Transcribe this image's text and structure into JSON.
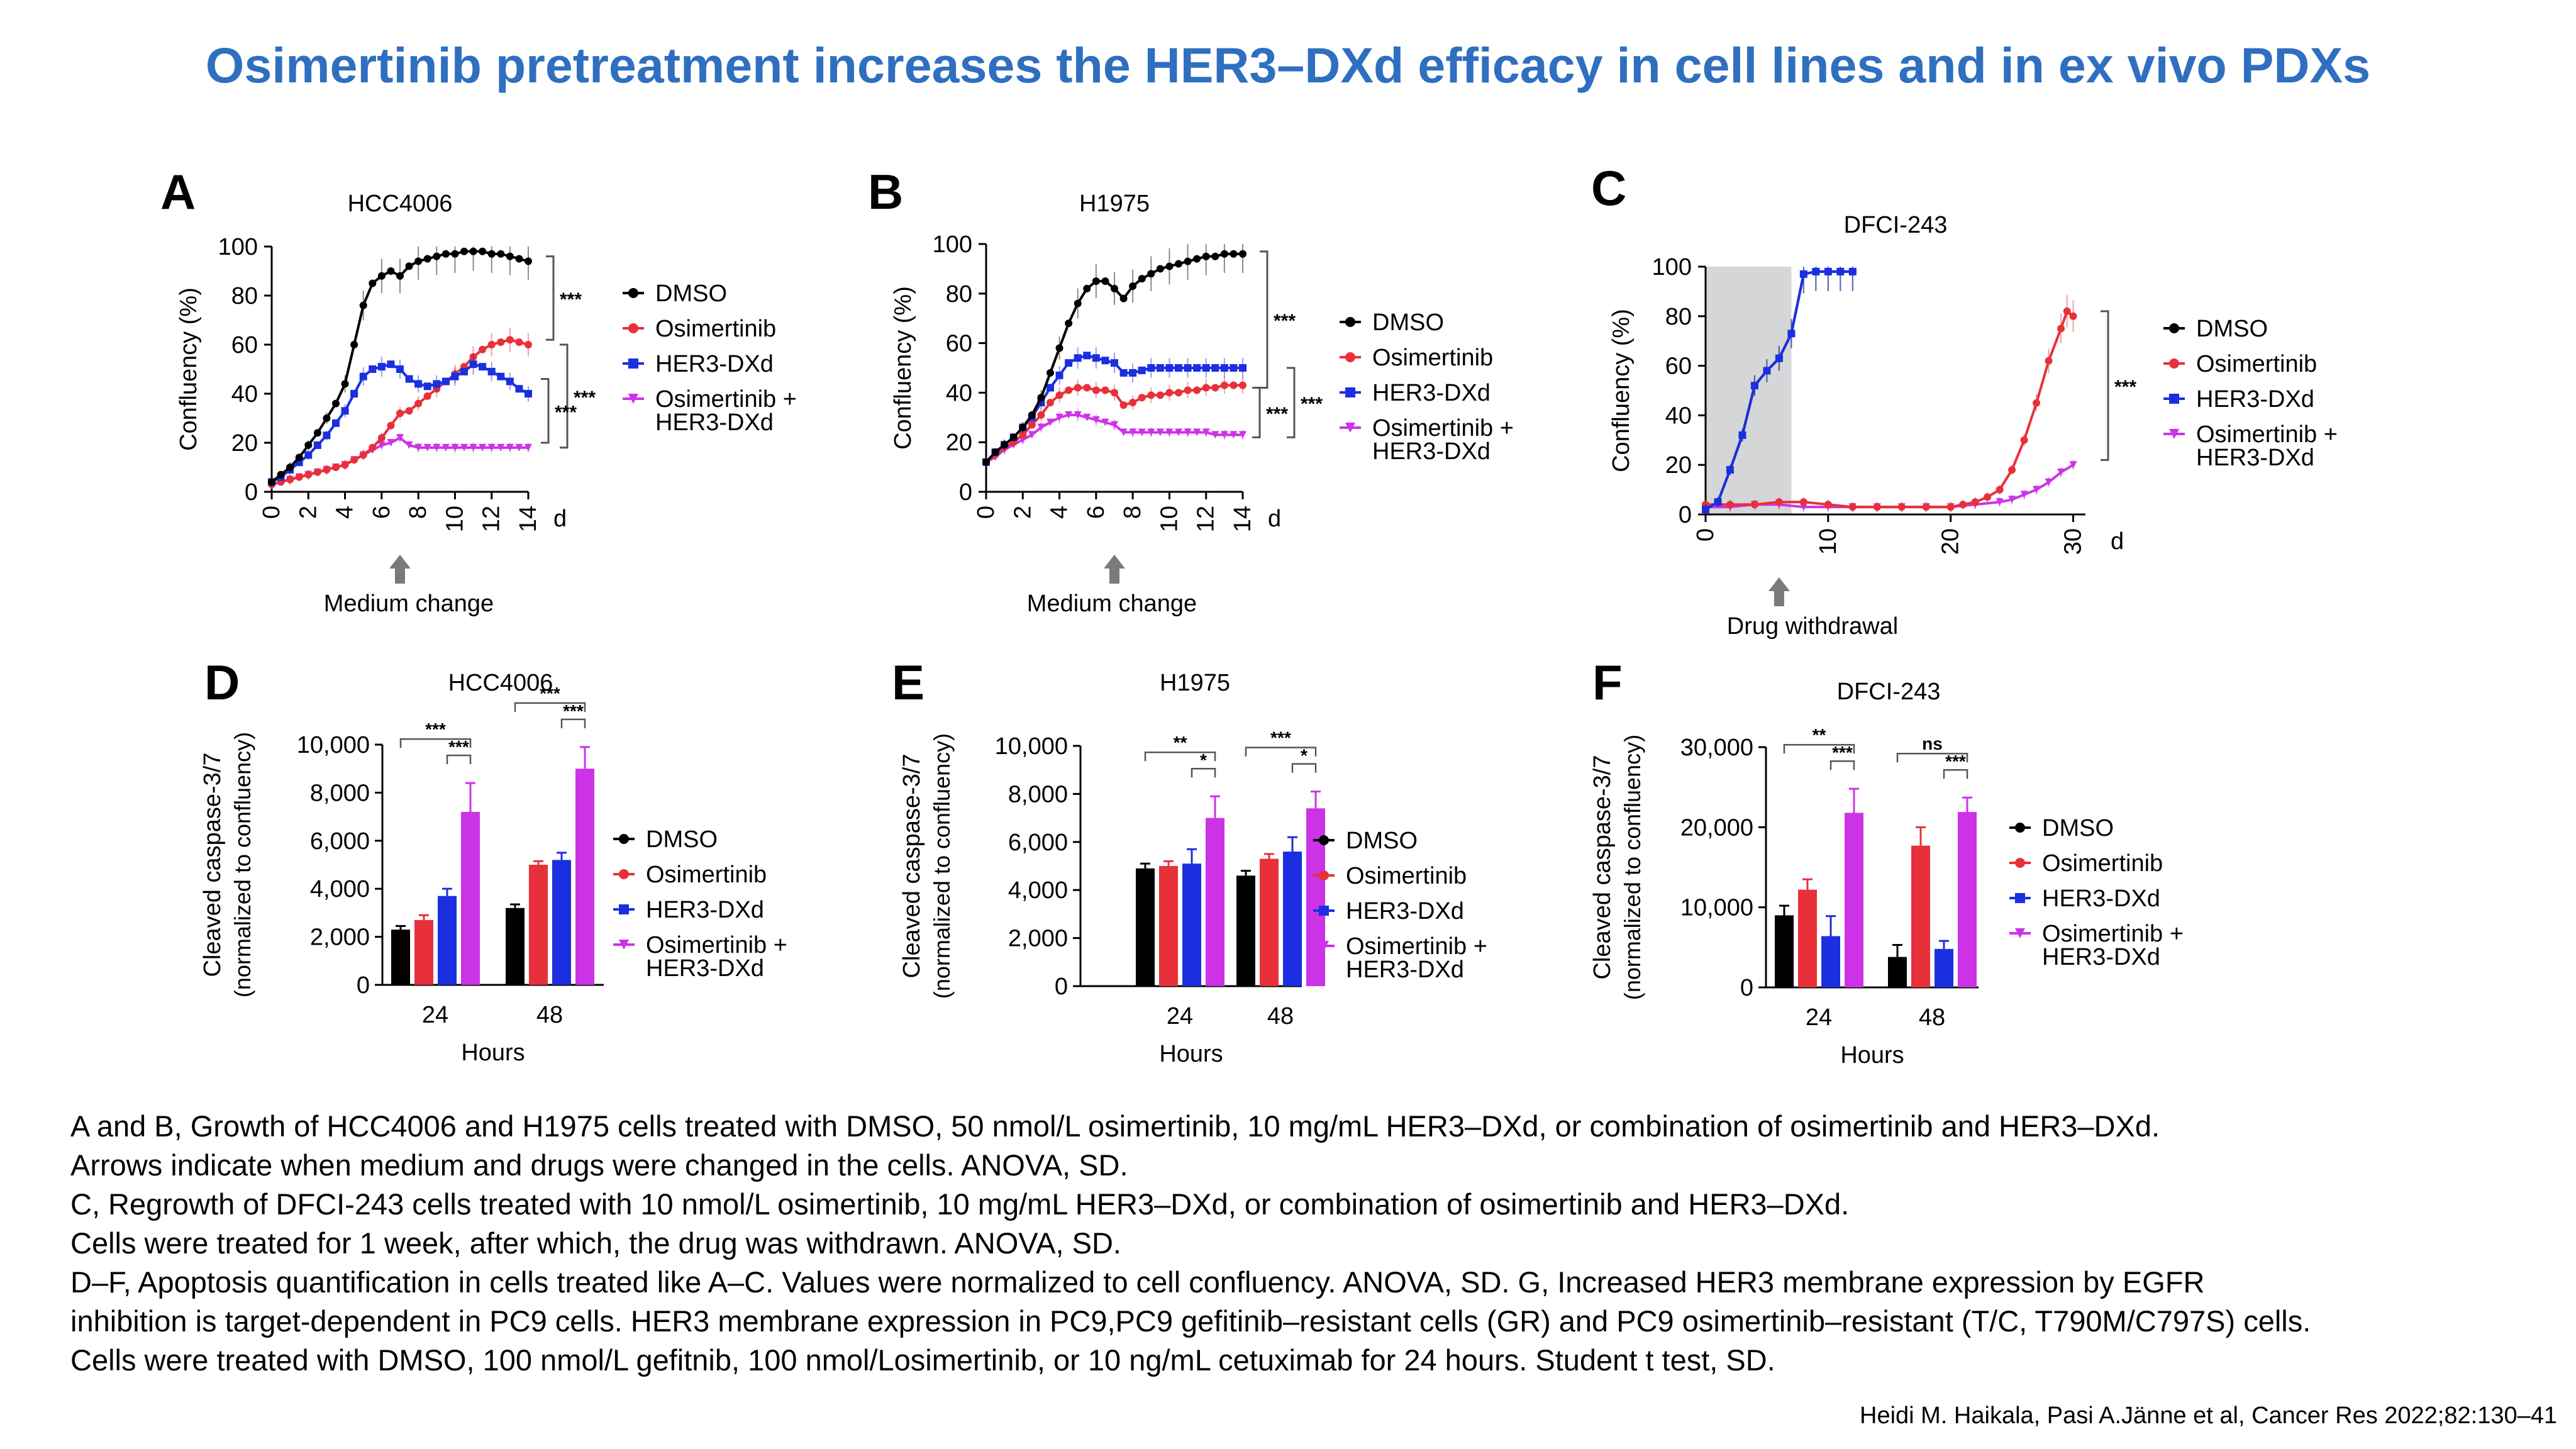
{
  "slide": {
    "title": "Osimertinib pretreatment increases the HER3–DXd efficacy in cell lines and in ex vivo PDXs",
    "caption_lines": [
      "A and B, Growth of HCC4006 and H1975 cells treated with DMSO, 50 nmol/L osimertinib, 10 mg/mL HER3–DXd, or combination of osimertinib and HER3–DXd.",
      "Arrows indicate when medium and drugs were changed in the cells. ANOVA, SD.",
      "C, Regrowth of DFCI-243 cells treated with 10 nmol/L osimertinib, 10 mg/mL HER3–DXd, or combination of osimertinib and HER3–DXd.",
      "Cells were treated for 1 week, after which, the drug was withdrawn. ANOVA, SD.",
      "D–F, Apoptosis quantification in cells treated like A–C. Values were normalized to cell confluency. ANOVA, SD. G, Increased HER3 membrane expression by EGFR",
      "inhibition is target-dependent in PC9 cells. HER3 membrane expression in PC9,PC9 gefitinib–resistant cells (GR) and PC9 osimertinib–resistant (T/C, T790M/C797S) cells.",
      "Cells were treated with DMSO, 100 nmol/L gefitnib, 100 nmol/Losimertinib, or 10 ng/mL cetuximab for 24 hours. Student t test, SD."
    ],
    "citation": "Heidi M. Haikala, Pasi A.Jänne et al, Cancer Res 2022;82:130–41"
  },
  "colors": {
    "dmso": "#000000",
    "osimertinib": "#e8303a",
    "her3dxd": "#1b2fe0",
    "combo": "#cc33e6",
    "title": "#2e6fc0",
    "shade": "#d4d6d8"
  },
  "legend_labels": [
    "DMSO",
    "Osimertinib",
    "HER3-DXd",
    "Osimertinib +",
    "HER3-DXd"
  ],
  "chart_data": [
    {
      "panel": "A",
      "type": "line",
      "title": "HCC4006",
      "xlabel": "",
      "x_unit": "d",
      "ylabel": "Confluency (%)",
      "xlim": [
        0,
        14
      ],
      "ylim": [
        0,
        100
      ],
      "xticks": [
        "0",
        "2",
        "4",
        "6",
        "8",
        "10",
        "12",
        "14"
      ],
      "yticks": [
        "0",
        "20",
        "40",
        "60",
        "80",
        "100"
      ],
      "annotation": "Medium change",
      "annotation_x": 7,
      "significance": [
        "***",
        "***",
        "***"
      ],
      "x": [
        0,
        0.5,
        1,
        1.5,
        2,
        2.5,
        3,
        3.5,
        4,
        4.5,
        5,
        5.5,
        6,
        6.5,
        7,
        7.5,
        8,
        8.5,
        9,
        9.5,
        10,
        10.5,
        11,
        11.5,
        12,
        12.5,
        13,
        13.5,
        14
      ],
      "series": [
        {
          "name": "DMSO",
          "values": [
            4,
            7,
            10,
            14,
            19,
            24,
            30,
            36,
            44,
            60,
            76,
            85,
            88,
            90,
            88,
            92,
            94,
            95,
            96,
            97,
            97,
            98,
            98,
            98,
            97,
            97,
            96,
            95,
            94
          ]
        },
        {
          "name": "Osimertinib",
          "values": [
            3,
            4,
            5,
            6,
            7,
            8,
            9,
            10,
            11,
            13,
            15,
            18,
            22,
            27,
            32,
            33,
            36,
            39,
            42,
            45,
            48,
            51,
            55,
            58,
            60,
            61,
            62,
            61,
            60
          ]
        },
        {
          "name": "HER3-DXd",
          "values": [
            4,
            6,
            9,
            12,
            15,
            19,
            23,
            28,
            33,
            40,
            47,
            50,
            51,
            52,
            50,
            46,
            44,
            43,
            44,
            45,
            47,
            49,
            52,
            51,
            49,
            47,
            45,
            42,
            40
          ]
        },
        {
          "name": "Osimertinib + HER3-DXd",
          "values": [
            3,
            4,
            5,
            6,
            7,
            8,
            9,
            10,
            11,
            13,
            15,
            17,
            19,
            20,
            22,
            19,
            18,
            18,
            18,
            18,
            18,
            18,
            18,
            18,
            18,
            18,
            18,
            18,
            18
          ]
        }
      ]
    },
    {
      "panel": "B",
      "type": "line",
      "title": "H1975",
      "xlabel": "",
      "x_unit": "d",
      "ylabel": "Confluency (%)",
      "xlim": [
        0,
        14
      ],
      "ylim": [
        0,
        100
      ],
      "xticks": [
        "0",
        "2",
        "4",
        "6",
        "8",
        "10",
        "12",
        "14"
      ],
      "yticks": [
        "0",
        "20",
        "40",
        "60",
        "80",
        "100"
      ],
      "annotation": "Medium change",
      "annotation_x": 7,
      "significance": [
        "***",
        "***",
        "***"
      ],
      "x": [
        0,
        0.5,
        1,
        1.5,
        2,
        2.5,
        3,
        3.5,
        4,
        4.5,
        5,
        5.5,
        6,
        6.5,
        7,
        7.5,
        8,
        8.5,
        9,
        9.5,
        10,
        10.5,
        11,
        11.5,
        12,
        12.5,
        13,
        13.5,
        14
      ],
      "series": [
        {
          "name": "DMSO",
          "values": [
            12,
            16,
            19,
            22,
            26,
            31,
            38,
            48,
            58,
            68,
            76,
            82,
            85,
            85,
            82,
            78,
            83,
            86,
            88,
            90,
            91,
            92,
            93,
            94,
            95,
            95,
            96,
            96,
            96
          ]
        },
        {
          "name": "Osimertinib",
          "values": [
            12,
            15,
            18,
            20,
            23,
            27,
            31,
            36,
            39,
            41,
            42,
            42,
            41,
            41,
            40,
            35,
            36,
            38,
            39,
            39,
            40,
            40,
            41,
            41,
            42,
            42,
            43,
            43,
            43
          ]
        },
        {
          "name": "HER3-DXd",
          "values": [
            12,
            16,
            19,
            22,
            26,
            30,
            36,
            42,
            47,
            52,
            54,
            55,
            54,
            53,
            52,
            48,
            48,
            49,
            50,
            50,
            50,
            50,
            50,
            50,
            50,
            50,
            50,
            50,
            50
          ]
        },
        {
          "name": "Osimertinib + HER3-DXd",
          "values": [
            12,
            14,
            17,
            19,
            21,
            23,
            26,
            28,
            30,
            31,
            31,
            30,
            29,
            28,
            27,
            24,
            24,
            24,
            24,
            24,
            24,
            24,
            24,
            24,
            24,
            23,
            23,
            23,
            23
          ]
        }
      ]
    },
    {
      "panel": "C",
      "type": "line",
      "title": "DFCI-243",
      "xlabel": "",
      "x_unit": "d",
      "ylabel": "Confluency (%)",
      "xlim": [
        0,
        31
      ],
      "ylim": [
        0,
        100
      ],
      "xticks": [
        "0",
        "10",
        "20",
        "30"
      ],
      "yticks": [
        "0",
        "20",
        "40",
        "60",
        "80",
        "100"
      ],
      "annotation": "Drug withdrawal",
      "annotation_x": 6,
      "shaded_x_range": [
        0,
        7
      ],
      "significance": [
        "***"
      ],
      "dmso": {
        "x": [
          0,
          1,
          2,
          3,
          4,
          5,
          6,
          7,
          8,
          9,
          10,
          11,
          12
        ],
        "values": [
          2,
          5,
          18,
          32,
          52,
          58,
          63,
          73,
          97,
          98,
          98,
          98,
          98
        ]
      },
      "series": [
        {
          "name": "DMSO",
          "x": [
            0,
            1,
            2,
            3,
            4,
            5,
            6,
            7,
            8,
            9,
            10,
            11,
            12
          ],
          "values": [
            2,
            5,
            18,
            32,
            52,
            58,
            63,
            73,
            97,
            98,
            98,
            98,
            98
          ]
        },
        {
          "name": "Osimertinib",
          "x": [
            0,
            2,
            4,
            6,
            8,
            10,
            12,
            14,
            16,
            18,
            20,
            21,
            22,
            23,
            24,
            25,
            26,
            27,
            28,
            29,
            29.5,
            30
          ],
          "values": [
            4,
            4,
            4,
            5,
            5,
            4,
            3,
            3,
            3,
            3,
            3,
            4,
            5,
            7,
            10,
            18,
            30,
            45,
            62,
            75,
            82,
            80
          ]
        },
        {
          "name": "HER3-DXd",
          "x": [
            0,
            1,
            2,
            3,
            4,
            5,
            6,
            7,
            8,
            9,
            10,
            11,
            12
          ],
          "values": [
            2,
            5,
            18,
            32,
            52,
            58,
            63,
            73,
            97,
            98,
            98,
            98,
            98
          ]
        },
        {
          "name": "Osimertinib + HER3-DXd",
          "x": [
            0,
            2,
            4,
            6,
            8,
            10,
            12,
            14,
            16,
            18,
            20,
            22,
            24,
            25,
            26,
            27,
            28,
            29,
            30
          ],
          "values": [
            3,
            3,
            4,
            4,
            3,
            3,
            3,
            3,
            3,
            3,
            3,
            4,
            5,
            6,
            8,
            10,
            13,
            17,
            20
          ]
        }
      ]
    },
    {
      "panel": "D",
      "type": "bar",
      "title": "HCC4006",
      "xlabel": "Hours",
      "ylabel": "Cleaved caspase-3/7",
      "ylabel2": "(normalized to confluency)",
      "ylim": [
        0,
        10000
      ],
      "yticks": [
        "0",
        "2,000",
        "4,000",
        "6,000",
        "8,000",
        "10,000"
      ],
      "categories": [
        "24",
        "48"
      ],
      "series": [
        {
          "name": "DMSO",
          "values": [
            2300,
            3200
          ],
          "err": [
            150,
            150
          ]
        },
        {
          "name": "Osimertinib",
          "values": [
            2700,
            5000
          ],
          "err": [
            200,
            150
          ]
        },
        {
          "name": "HER3-DXd",
          "values": [
            3700,
            5200
          ],
          "err": [
            300,
            300
          ]
        },
        {
          "name": "Osimertinib + HER3-DXd",
          "values": [
            7200,
            9000
          ],
          "err": [
            1200,
            900
          ]
        }
      ],
      "significance": [
        [
          "***",
          "***"
        ],
        [
          "***",
          "***"
        ]
      ]
    },
    {
      "panel": "E",
      "type": "bar",
      "title": "H1975",
      "xlabel": "Hours",
      "ylabel": "Cleaved caspase-3/7",
      "ylabel2": "(normalized to confluency)",
      "ylim": [
        0,
        10000
      ],
      "yticks": [
        "0",
        "2,000",
        "4,000",
        "6,000",
        "8,000",
        "10,000"
      ],
      "categories": [
        "24",
        "48"
      ],
      "series": [
        {
          "name": "DMSO",
          "values": [
            4900,
            4600
          ],
          "err": [
            200,
            200
          ]
        },
        {
          "name": "Osimertinib",
          "values": [
            5000,
            5300
          ],
          "err": [
            200,
            200
          ]
        },
        {
          "name": "HER3-DXd",
          "values": [
            5100,
            5600
          ],
          "err": [
            600,
            600
          ]
        },
        {
          "name": "Osimertinib + HER3-DXd",
          "values": [
            7000,
            7400
          ],
          "err": [
            900,
            700
          ]
        }
      ],
      "significance": [
        [
          "**",
          "*"
        ],
        [
          "***",
          "*"
        ]
      ]
    },
    {
      "panel": "F",
      "type": "bar",
      "title": "DFCI-243",
      "xlabel": "Hours",
      "ylabel": "Cleaved caspase-3/7",
      "ylabel2": "(normalized to confluency)",
      "ylim": [
        0,
        30000
      ],
      "yticks": [
        "0",
        "10,000",
        "20,000",
        "30,000"
      ],
      "categories": [
        "24",
        "48"
      ],
      "series": [
        {
          "name": "DMSO",
          "values": [
            9000,
            3800
          ],
          "err": [
            1200,
            1500
          ]
        },
        {
          "name": "Osimertinib",
          "values": [
            12200,
            17700
          ],
          "err": [
            1300,
            2300
          ]
        },
        {
          "name": "HER3-DXd",
          "values": [
            6400,
            4800
          ],
          "err": [
            2500,
            1000
          ]
        },
        {
          "name": "Osimertinib + HER3-DXd",
          "values": [
            21800,
            21900
          ],
          "err": [
            3000,
            1800
          ]
        }
      ],
      "significance": [
        [
          "**",
          "***"
        ],
        [
          "ns",
          "***"
        ]
      ]
    }
  ]
}
